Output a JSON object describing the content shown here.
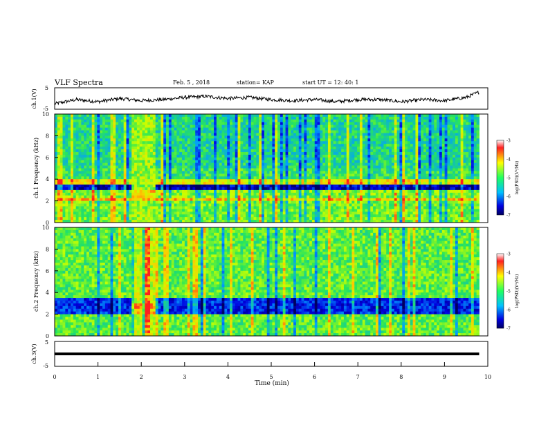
{
  "header": {
    "title": "VLF Spectra",
    "date": "Feb. 5 , 2018",
    "station": "station= KAP",
    "start": "start UT = 12: 40: 1"
  },
  "chart_data": [
    {
      "type": "line",
      "panel": "ch1-voltage",
      "ylabel": "ch.1(V)",
      "ylim": [
        -5,
        5
      ],
      "yticks": [
        "5",
        "-5"
      ],
      "xlim": [
        0,
        10
      ],
      "x": [
        0,
        0.5,
        1,
        1.5,
        2,
        2.5,
        3,
        3.5,
        4,
        4.5,
        5,
        5.5,
        6,
        6.5,
        7,
        7.5,
        8,
        8.5,
        9,
        9.5,
        9.8
      ],
      "y": [
        -2.5,
        -0.5,
        -1.5,
        0,
        -1,
        -0.5,
        0.5,
        1,
        0,
        0.5,
        -0.5,
        -1,
        -0.5,
        -1.5,
        -0.5,
        -0.5,
        -1.5,
        -0.5,
        -1,
        0.5,
        3
      ]
    },
    {
      "type": "heatmap",
      "panel": "ch1-spectrogram",
      "ylabel": "ch.1 Frequency (kHz)",
      "ylim": [
        0,
        10
      ],
      "yticks": [
        "0",
        "2",
        "4",
        "6",
        "8",
        "10"
      ],
      "xlim": [
        0,
        9.8
      ],
      "colorbar": {
        "label": "log(PSD)(V²/Hz)",
        "range": [
          -7,
          -3
        ],
        "ticks": [
          "-3",
          "-4",
          "-5",
          "-6",
          "-7"
        ]
      },
      "bands": [
        {
          "from": 0,
          "to": 2,
          "level": -4.5
        },
        {
          "from": 2,
          "to": 2.3,
          "level": -3.6
        },
        {
          "from": 2.3,
          "to": 2.9,
          "level": -4.4
        },
        {
          "from": 2.9,
          "to": 3.6,
          "level": -6.5
        },
        {
          "from": 3.6,
          "to": 4.0,
          "level": -3.8
        },
        {
          "from": 4.0,
          "to": 5.0,
          "level": -4.8
        },
        {
          "from": 5.0,
          "to": 10,
          "level": -5.0
        }
      ],
      "burst": {
        "from": 1.75,
        "to": 2.3,
        "level": -4.3
      }
    },
    {
      "type": "heatmap",
      "panel": "ch2-spectrogram",
      "ylabel": "ch.2 Frequency (kHz)",
      "ylim": [
        0,
        10
      ],
      "yticks": [
        "0",
        "2",
        "4",
        "6",
        "8",
        "10"
      ],
      "xlim": [
        0,
        9.8
      ],
      "colorbar": {
        "label": "log(PSD)(V²/Hz)",
        "range": [
          -7,
          -3
        ],
        "ticks": [
          "-3",
          "-4",
          "-5",
          "-6",
          "-7"
        ]
      },
      "bands": [
        {
          "from": 0,
          "to": 2,
          "level": -4.6
        },
        {
          "from": 2,
          "to": 3.5,
          "level": -6.2
        },
        {
          "from": 3.5,
          "to": 10,
          "level": -4.6
        }
      ],
      "burst": {
        "from": 1.75,
        "to": 2.3,
        "level": -4.1
      }
    },
    {
      "type": "line",
      "panel": "ch3-voltage",
      "ylabel": "ch.3(V)",
      "ylim": [
        -5,
        5
      ],
      "yticks": [
        "5",
        "-5"
      ],
      "xlim": [
        0,
        10
      ],
      "x": [
        0,
        9.8
      ],
      "y": [
        0,
        0
      ],
      "xlabel": "Time (min)",
      "xticks": [
        "0",
        "1",
        "2",
        "3",
        "4",
        "5",
        "6",
        "7",
        "8",
        "9",
        "10"
      ]
    }
  ]
}
